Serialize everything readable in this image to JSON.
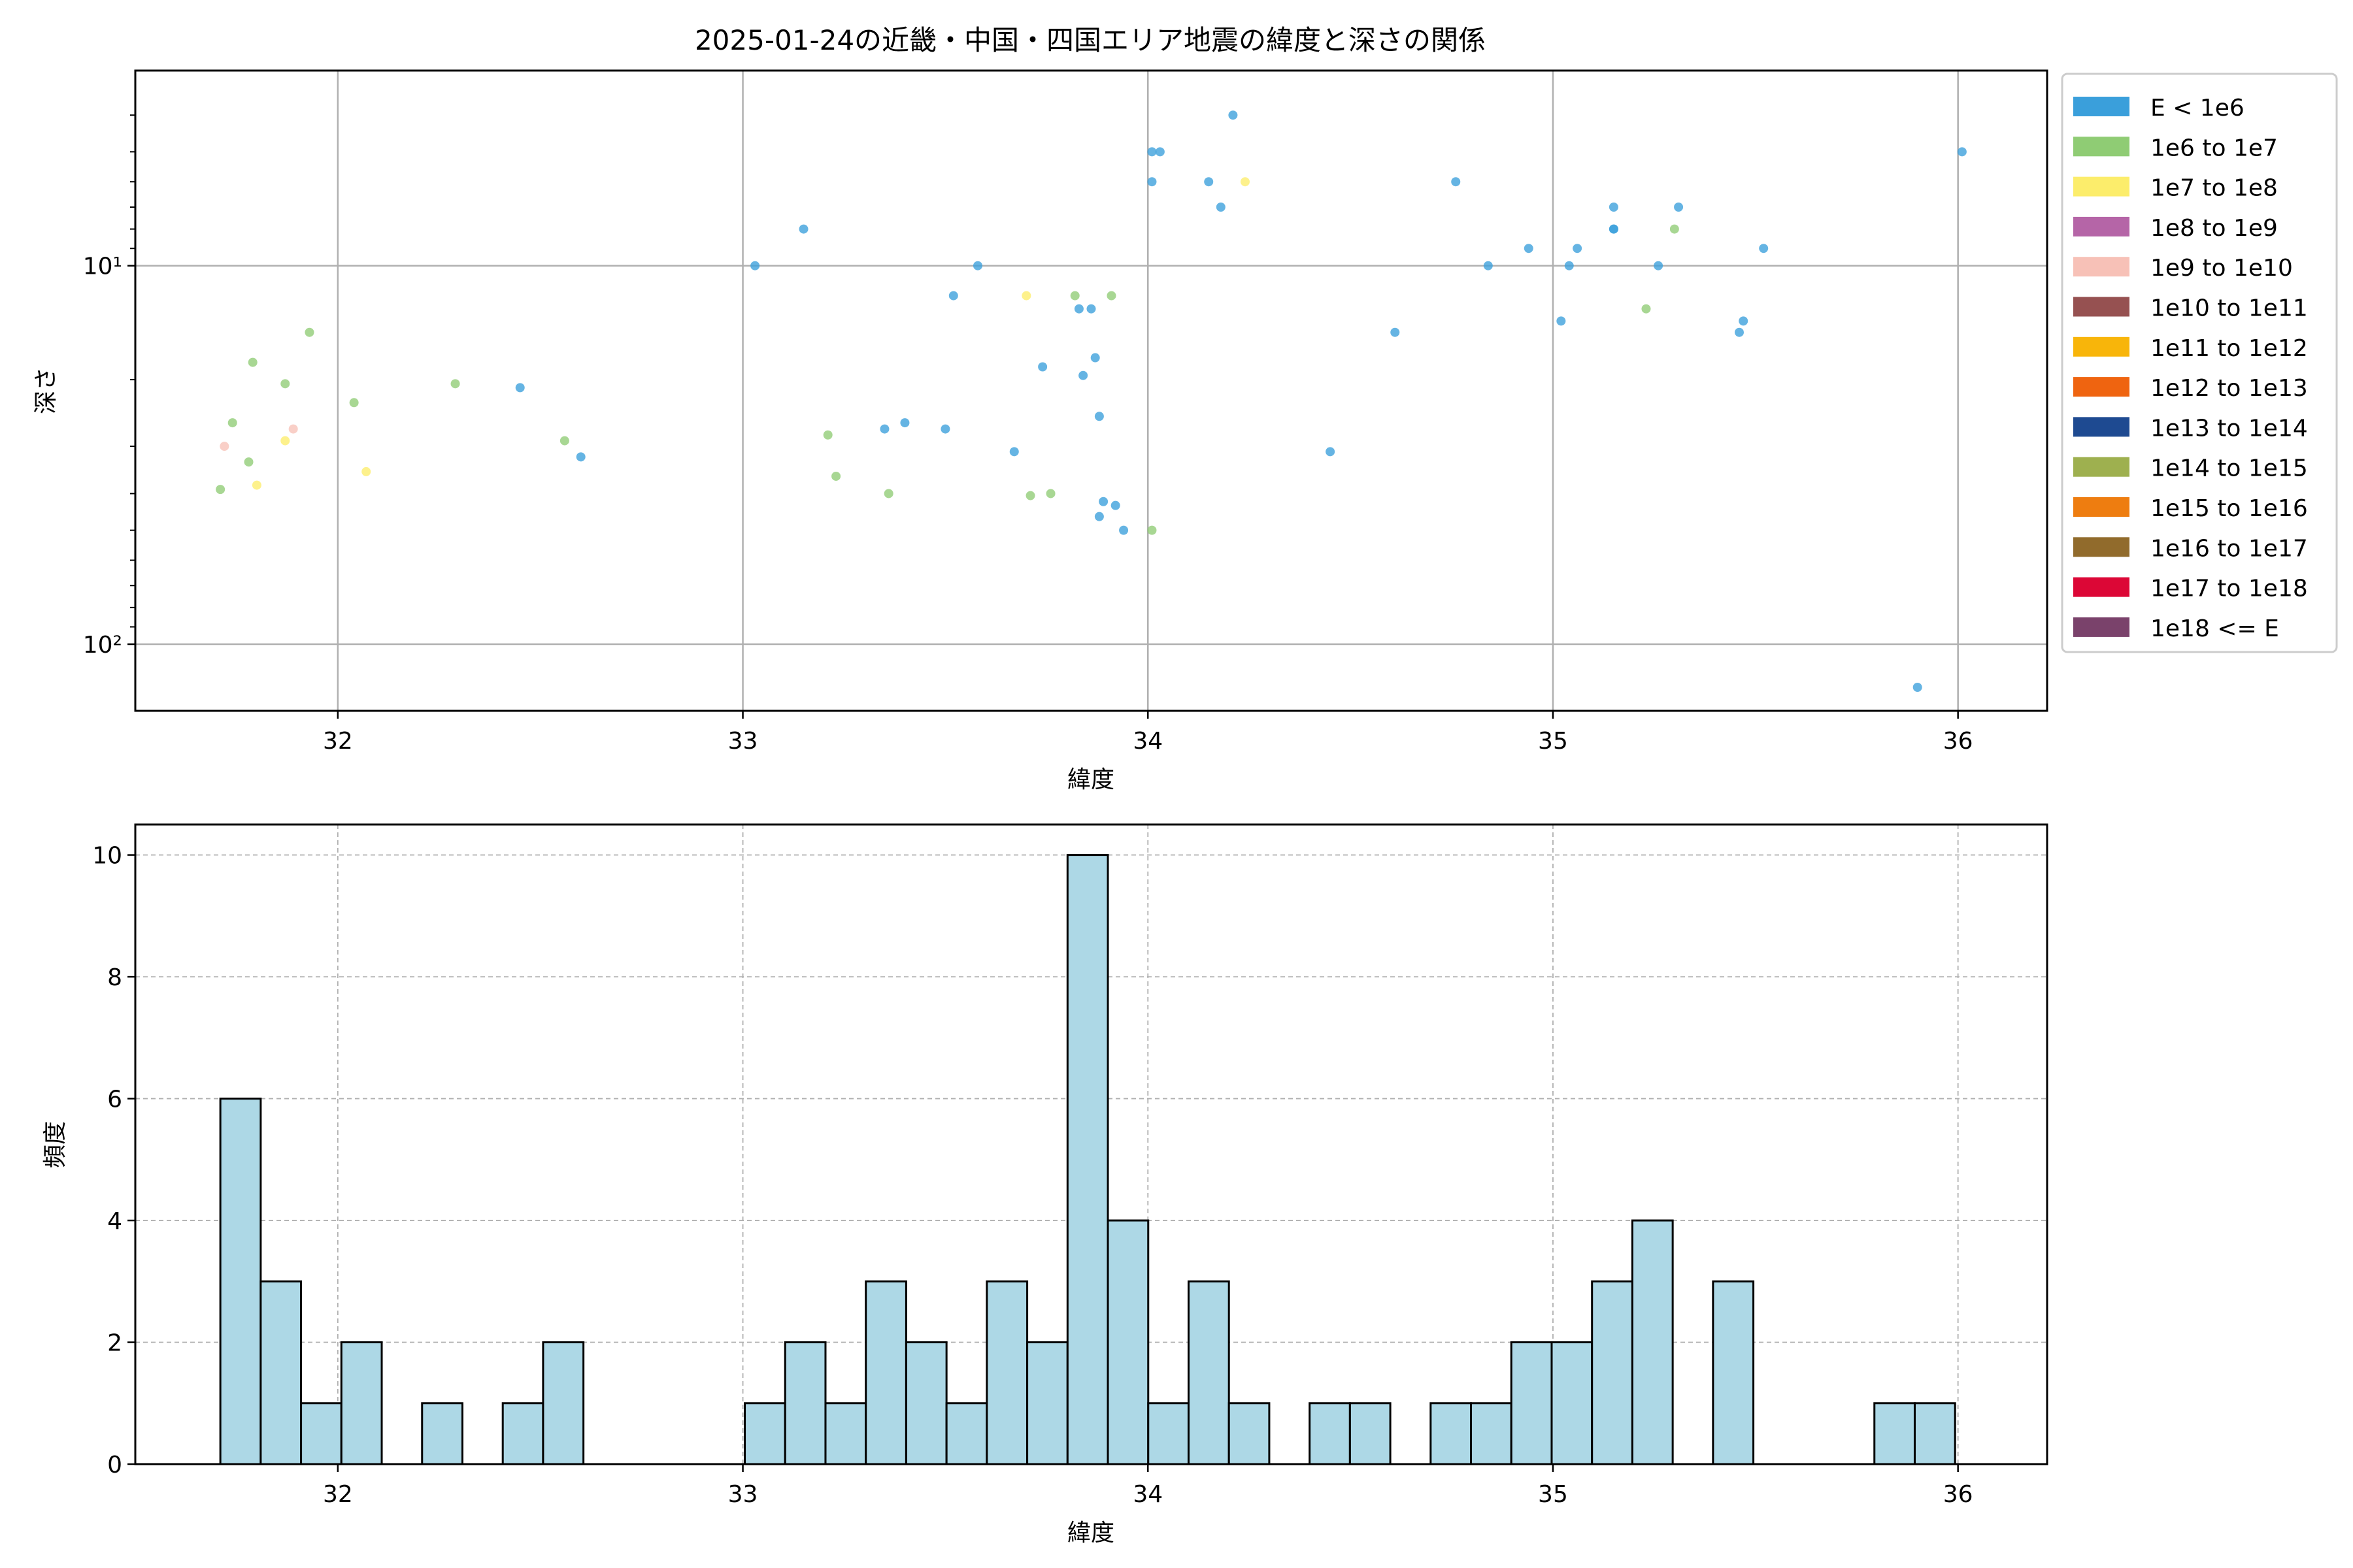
{
  "chart_data": [
    {
      "type": "scatter",
      "title": "2025-01-24の近畿・中国・四国エリア地震の緯度と深さの関係",
      "xlabel": "緯度",
      "ylabel": "深さ",
      "xlim": [
        31.5,
        36.22
      ],
      "ylim": [
        150,
        3.05
      ],
      "yscale": "log",
      "y_inverted": true,
      "grid": true,
      "x_ticks": [
        32,
        33,
        34,
        35,
        36
      ],
      "x_tick_labels": [
        "32",
        "33",
        "34",
        "35",
        "36"
      ],
      "y_ticks": [
        10,
        100
      ],
      "y_tick_labels": [
        "10¹",
        "10²"
      ],
      "legend_position": "outside-right",
      "legend": [
        {
          "label": "E < 1e6",
          "color": "#3a9fdb"
        },
        {
          "label": "1e6 to 1e7",
          "color": "#8fcc74"
        },
        {
          "label": "1e7 to 1e8",
          "color": "#fced6b"
        },
        {
          "label": "1e8 to 1e9",
          "color": "#b565a7"
        },
        {
          "label": "1e9 to 1e10",
          "color": "#f7c1b7"
        },
        {
          "label": "1e10 to 1e11",
          "color": "#965151"
        },
        {
          "label": "1e11 to 1e12",
          "color": "#f8b50a"
        },
        {
          "label": "1e12 to 1e13",
          "color": "#ef6410"
        },
        {
          "label": "1e13 to 1e14",
          "color": "#1e4a91"
        },
        {
          "label": "1e14 to 1e15",
          "color": "#9eb04f"
        },
        {
          "label": "1e15 to 1e16",
          "color": "#ee7d10"
        },
        {
          "label": "1e16 to 1e17",
          "color": "#916b2c"
        },
        {
          "label": "1e17 to 1e18",
          "color": "#dc0736"
        },
        {
          "label": "1e18 <= E",
          "color": "#7a426b"
        }
      ],
      "series": [
        {
          "name": "E < 1e6",
          "points": [
            [
              32.45,
              21
            ],
            [
              32.6,
              32
            ],
            [
              33.03,
              10
            ],
            [
              33.15,
              8
            ],
            [
              33.35,
              27
            ],
            [
              33.4,
              26
            ],
            [
              33.5,
              27
            ],
            [
              33.52,
              12
            ],
            [
              33.58,
              10
            ],
            [
              33.67,
              31
            ],
            [
              33.74,
              18.5
            ],
            [
              33.83,
              13
            ],
            [
              33.84,
              19.5
            ],
            [
              33.86,
              13
            ],
            [
              33.87,
              17.5
            ],
            [
              33.88,
              25
            ],
            [
              33.88,
              46
            ],
            [
              33.89,
              42
            ],
            [
              33.92,
              43
            ],
            [
              33.94,
              50
            ],
            [
              34.01,
              5
            ],
            [
              34.01,
              6
            ],
            [
              34.03,
              5
            ],
            [
              34.15,
              6
            ],
            [
              34.18,
              7
            ],
            [
              34.21,
              4
            ],
            [
              34.45,
              31
            ],
            [
              34.61,
              15
            ],
            [
              34.76,
              6
            ],
            [
              34.84,
              10
            ],
            [
              34.94,
              9
            ],
            [
              35.02,
              14
            ],
            [
              35.04,
              10
            ],
            [
              35.06,
              9
            ],
            [
              35.15,
              7
            ],
            [
              35.15,
              8
            ],
            [
              35.15,
              8
            ],
            [
              35.26,
              10
            ],
            [
              35.31,
              7
            ],
            [
              35.46,
              15
            ],
            [
              35.47,
              14
            ],
            [
              35.52,
              9
            ],
            [
              35.9,
              130
            ],
            [
              36.01,
              5
            ]
          ]
        },
        {
          "name": "1e6 to 1e7",
          "points": [
            [
              31.71,
              39
            ],
            [
              31.74,
              26
            ],
            [
              31.78,
              33
            ],
            [
              31.79,
              18
            ],
            [
              31.87,
              20.5
            ],
            [
              31.93,
              15
            ],
            [
              32.04,
              23
            ],
            [
              32.29,
              20.5
            ],
            [
              32.56,
              29
            ],
            [
              33.21,
              28
            ],
            [
              33.23,
              36
            ],
            [
              33.36,
              40
            ],
            [
              33.71,
              40.5
            ],
            [
              33.76,
              40
            ],
            [
              33.82,
              12
            ],
            [
              33.91,
              12
            ],
            [
              34.01,
              50
            ],
            [
              35.23,
              13
            ],
            [
              35.3,
              8
            ]
          ]
        },
        {
          "name": "1e7 to 1e8",
          "points": [
            [
              31.8,
              38
            ],
            [
              31.87,
              29
            ],
            [
              32.07,
              35
            ],
            [
              33.7,
              12
            ],
            [
              34.24,
              6
            ]
          ]
        },
        {
          "name": "1e9 to 1e10",
          "points": [
            [
              31.72,
              30
            ],
            [
              31.89,
              27
            ]
          ]
        }
      ]
    },
    {
      "type": "bar",
      "title": "",
      "xlabel": "緯度",
      "ylabel": "頻度",
      "xlim": [
        31.5,
        36.22
      ],
      "ylim": [
        0,
        10.5
      ],
      "grid": true,
      "bar_color": "#add8e6",
      "x_ticks": [
        32,
        33,
        34,
        35,
        36
      ],
      "x_tick_labels": [
        "32",
        "33",
        "34",
        "35",
        "36"
      ],
      "y_ticks": [
        0,
        2,
        4,
        6,
        8,
        10
      ],
      "y_tick_labels": [
        "0",
        "2",
        "4",
        "6",
        "8",
        "10"
      ],
      "bin_start": 31.71,
      "bin_width": 0.0996,
      "counts": [
        6,
        3,
        1,
        2,
        0,
        1,
        0,
        1,
        2,
        0,
        0,
        0,
        0,
        1,
        2,
        1,
        3,
        2,
        1,
        3,
        2,
        10,
        4,
        1,
        3,
        1,
        0,
        1,
        1,
        0,
        1,
        1,
        2,
        2,
        3,
        4,
        0,
        3,
        0,
        0,
        0,
        1,
        1
      ]
    }
  ]
}
